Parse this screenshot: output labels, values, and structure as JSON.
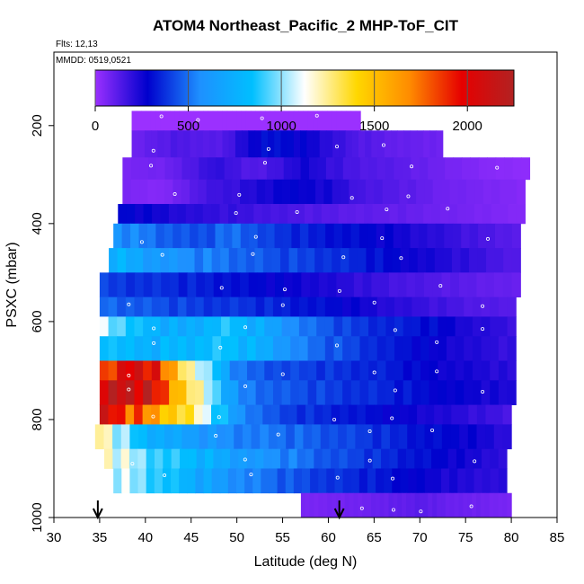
{
  "chart_data": {
    "type": "heatmap",
    "title": "ATOM4 Northeast_Pacific_2 MHP-ToF_CIT",
    "flights_label": "Flts: 12,13",
    "date_label": "MMDD: 0519,0521",
    "xlabel": "Latitude (deg N)",
    "ylabel": "PSXC (mbar)",
    "xlim": [
      30,
      85
    ],
    "ylim": [
      1000,
      50
    ],
    "x_ticks": [
      30,
      35,
      40,
      45,
      50,
      55,
      60,
      65,
      70,
      75,
      80,
      85
    ],
    "y_ticks": [
      200,
      400,
      600,
      800,
      1000
    ],
    "colorbar": {
      "range": [
        0,
        2250
      ],
      "ticks": [
        0,
        500,
        1000,
        1500,
        2000
      ],
      "colors": [
        "#9b30ff",
        "#0000cd",
        "#1e90ff",
        "#00bfff",
        "#ffffff",
        "#ffd700",
        "#ff8c00",
        "#e60000",
        "#b22222"
      ]
    },
    "profile_arrows_lat": [
      34.8,
      61.2
    ],
    "rows": [
      {
        "p": [
          170,
          210
        ],
        "lat": [
          38.5,
          63.5
        ],
        "v": [
          0,
          0,
          0,
          0,
          0,
          0
        ]
      },
      {
        "p": [
          210,
          265
        ],
        "lat": [
          38.5,
          72.5
        ],
        "v": [
          80,
          140,
          120,
          320,
          260,
          140,
          100,
          80
        ]
      },
      {
        "p": [
          265,
          310
        ],
        "lat": [
          37.5,
          82
        ],
        "v": [
          60,
          80,
          200,
          120,
          250,
          150,
          120,
          80,
          40,
          20
        ]
      },
      {
        "p": [
          310,
          360
        ],
        "lat": [
          37.5,
          81.5
        ],
        "v": [
          60,
          40,
          150,
          200,
          280,
          250,
          150,
          120,
          80,
          60,
          40
        ]
      },
      {
        "p": [
          360,
          400
        ],
        "lat": [
          37,
          81.5
        ],
        "v": [
          300,
          250,
          200,
          180,
          150,
          130,
          110,
          100,
          80,
          60,
          40
        ]
      },
      {
        "p": [
          400,
          450
        ],
        "lat": [
          36.5,
          81
        ],
        "v": [
          600,
          500,
          420,
          500,
          380,
          330,
          300,
          250,
          200,
          150,
          120
        ]
      },
      {
        "p": [
          450,
          500
        ],
        "lat": [
          36,
          81
        ],
        "v": [
          800,
          650,
          550,
          500,
          430,
          400,
          350,
          280,
          230,
          180,
          120
        ]
      },
      {
        "p": [
          500,
          550
        ],
        "lat": [
          35,
          81
        ],
        "v": [
          400,
          380,
          350,
          320,
          280,
          250,
          200,
          160,
          130,
          110,
          90
        ]
      },
      {
        "p": [
          550,
          590
        ],
        "lat": [
          35,
          80.5
        ],
        "v": [
          500,
          450,
          400,
          380,
          340,
          300,
          230,
          180,
          140,
          120
        ]
      },
      {
        "p": [
          590,
          630
        ],
        "lat": [
          35,
          80.5
        ],
        "v": [
          1100,
          800,
          700,
          850,
          700,
          500,
          400,
          350,
          300,
          220,
          180
        ]
      },
      {
        "p": [
          630,
          680
        ],
        "lat": [
          35,
          80.5
        ],
        "v": [
          900,
          750,
          800,
          850,
          720,
          500,
          420,
          330,
          270,
          220,
          180
        ]
      },
      {
        "p": [
          680,
          720
        ],
        "lat": [
          35,
          80.5
        ],
        "v": [
          1800,
          2100,
          1200,
          500,
          420,
          380,
          350,
          280,
          240,
          200
        ]
      },
      {
        "p": [
          720,
          770
        ],
        "lat": [
          35,
          80.5
        ],
        "v": [
          2100,
          2150,
          1300,
          550,
          450,
          400,
          360,
          300,
          260,
          220
        ]
      },
      {
        "p": [
          770,
          810
        ],
        "lat": [
          35,
          80
        ],
        "v": [
          2050,
          1700,
          1300,
          600,
          400,
          350,
          300,
          250,
          200,
          150
        ]
      },
      {
        "p": [
          810,
          860
        ],
        "lat": [
          34.5,
          80
        ],
        "v": [
          1300,
          800,
          650,
          550,
          500,
          450,
          380,
          320,
          270,
          200
        ]
      },
      {
        "p": [
          860,
          900
        ],
        "lat": [
          35.5,
          79.5
        ],
        "v": [
          1200,
          950,
          800,
          650,
          550,
          450,
          380,
          320,
          250,
          200
        ]
      },
      {
        "p": [
          900,
          950
        ],
        "lat": [
          36.5,
          79.5
        ],
        "v": [
          1100,
          900,
          700,
          550,
          450,
          380,
          330,
          270,
          220,
          200
        ]
      },
      {
        "p": [
          950,
          1000
        ],
        "lat": [
          57,
          80
        ],
        "v": [
          60,
          70,
          80,
          100,
          120,
          90,
          80,
          60
        ]
      }
    ]
  }
}
